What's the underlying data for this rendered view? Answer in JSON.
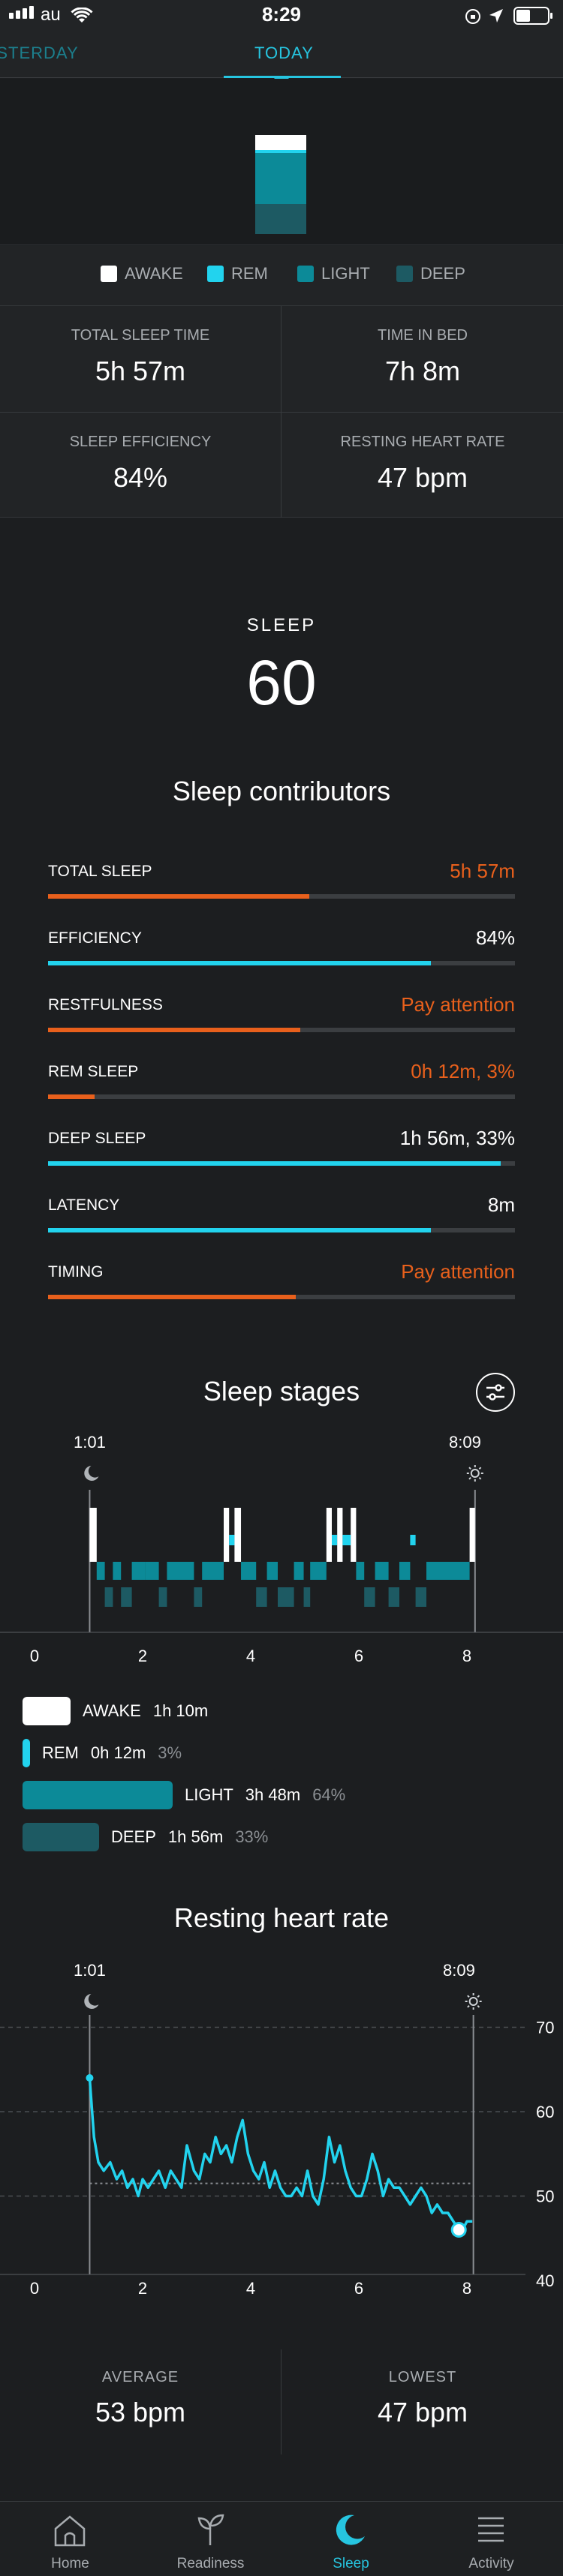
{
  "status_bar": {
    "carrier": "au",
    "time": "8:29"
  },
  "tabs": [
    {
      "label": "YESTERDAY",
      "active": false
    },
    {
      "label": "TODAY",
      "active": true
    }
  ],
  "legend": [
    {
      "label": "AWAKE",
      "color": "#ffffff"
    },
    {
      "label": "REM",
      "color": "#22d3ee"
    },
    {
      "label": "LIGHT",
      "color": "#0c8a98"
    },
    {
      "label": "DEEP",
      "color": "#1d5a63"
    }
  ],
  "stats": {
    "total_sleep_time": {
      "label": "TOTAL SLEEP TIME",
      "value": "5h 57m"
    },
    "time_in_bed": {
      "label": "TIME IN BED",
      "value": "7h 8m"
    },
    "sleep_efficiency": {
      "label": "SLEEP EFFICIENCY",
      "value": "84%"
    },
    "resting_heart_rate": {
      "label": "RESTING HEART RATE",
      "value": "47 bpm"
    }
  },
  "score": {
    "label": "SLEEP",
    "value": "60"
  },
  "contributors": {
    "title": "Sleep contributors",
    "items": [
      {
        "label": "TOTAL SLEEP",
        "value": "5h 57m",
        "level": 0.56,
        "status": "warn"
      },
      {
        "label": "EFFICIENCY",
        "value": "84%",
        "level": 0.82,
        "status": "ok"
      },
      {
        "label": "RESTFULNESS",
        "value": "Pay attention",
        "level": 0.54,
        "status": "warn"
      },
      {
        "label": "REM SLEEP",
        "value": "0h 12m, 3%",
        "level": 0.1,
        "status": "warn"
      },
      {
        "label": "DEEP SLEEP",
        "value": "1h 56m, 33%",
        "level": 0.97,
        "status": "ok"
      },
      {
        "label": "LATENCY",
        "value": "8m",
        "level": 0.82,
        "status": "ok"
      },
      {
        "label": "TIMING",
        "value": "Pay attention",
        "level": 0.53,
        "status": "warn"
      }
    ],
    "colors": {
      "warn": "#e8601c",
      "ok": "#22d3ee"
    }
  },
  "sleep_stages": {
    "title": "Sleep stages",
    "start_time": "1:01",
    "end_time": "8:09",
    "x_ticks": [
      "0",
      "2",
      "4",
      "6",
      "8"
    ],
    "legend": [
      {
        "label": "AWAKE",
        "duration": "1h 10m",
        "pct": ""
      },
      {
        "label": "REM",
        "duration": "0h 12m",
        "pct": "3%"
      },
      {
        "label": "LIGHT",
        "duration": "3h 48m",
        "pct": "64%"
      },
      {
        "label": "DEEP",
        "duration": "1h 56m",
        "pct": "33%"
      }
    ]
  },
  "resting_heart_rate": {
    "title": "Resting heart rate",
    "start_time": "1:01",
    "end_time": "8:09",
    "x_ticks": [
      "0",
      "2",
      "4",
      "6",
      "8"
    ],
    "y_ticks": [
      "70",
      "60",
      "50",
      "40"
    ],
    "average": {
      "label": "AVERAGE",
      "value": "53 bpm"
    },
    "lowest": {
      "label": "LOWEST",
      "value": "47 bpm"
    }
  },
  "chart_data": {
    "type": "line",
    "title": "Resting heart rate",
    "xlabel": "",
    "ylabel": "",
    "xlim": [
      0,
      9
    ],
    "ylim": [
      40,
      72
    ],
    "series": [
      {
        "x": [
          1.02,
          1.1,
          1.18,
          1.28,
          1.4,
          1.52,
          1.62,
          1.72,
          1.82,
          1.92,
          2.0,
          2.1,
          2.2,
          2.3,
          2.42,
          2.52,
          2.62,
          2.72,
          2.82,
          2.95,
          3.05,
          3.15,
          3.25,
          3.35,
          3.45,
          3.55,
          3.65,
          3.75,
          3.85,
          3.95,
          4.05,
          4.15,
          4.25,
          4.35,
          4.45,
          4.55,
          4.65,
          4.75,
          4.85,
          4.95,
          5.05,
          5.15,
          5.25,
          5.35,
          5.45,
          5.55,
          5.65,
          5.75,
          5.85,
          5.95,
          6.05,
          6.15,
          6.25,
          6.35,
          6.45,
          6.55,
          6.65,
          6.75,
          6.85,
          6.95,
          7.05,
          7.15,
          7.25,
          7.35,
          7.45,
          7.55,
          7.65,
          7.75,
          7.85,
          7.92,
          8.0,
          8.1
        ],
        "y": [
          64,
          57,
          54,
          53,
          54,
          52,
          53,
          51,
          52,
          50,
          52,
          51,
          52,
          53,
          51,
          53,
          52,
          51,
          56,
          53,
          52,
          55,
          54,
          57,
          55,
          56,
          54,
          57,
          59,
          55,
          53,
          52,
          54,
          51,
          53,
          51,
          50,
          50,
          51,
          50,
          53,
          50,
          49,
          52,
          57,
          54,
          56,
          53,
          51,
          50,
          50,
          52,
          55,
          53,
          50,
          52,
          51,
          51,
          50,
          49,
          50,
          51,
          50,
          48,
          49,
          48,
          48,
          47,
          46,
          46,
          47,
          47
        ]
      }
    ],
    "baseline": 51.5
  },
  "nav": [
    {
      "label": "Home",
      "icon": "home-icon",
      "active": false
    },
    {
      "label": "Readiness",
      "icon": "sprout-icon",
      "active": false
    },
    {
      "label": "Sleep",
      "icon": "moon-icon",
      "active": true
    },
    {
      "label": "Activity",
      "icon": "activity-list-icon",
      "active": false
    }
  ]
}
